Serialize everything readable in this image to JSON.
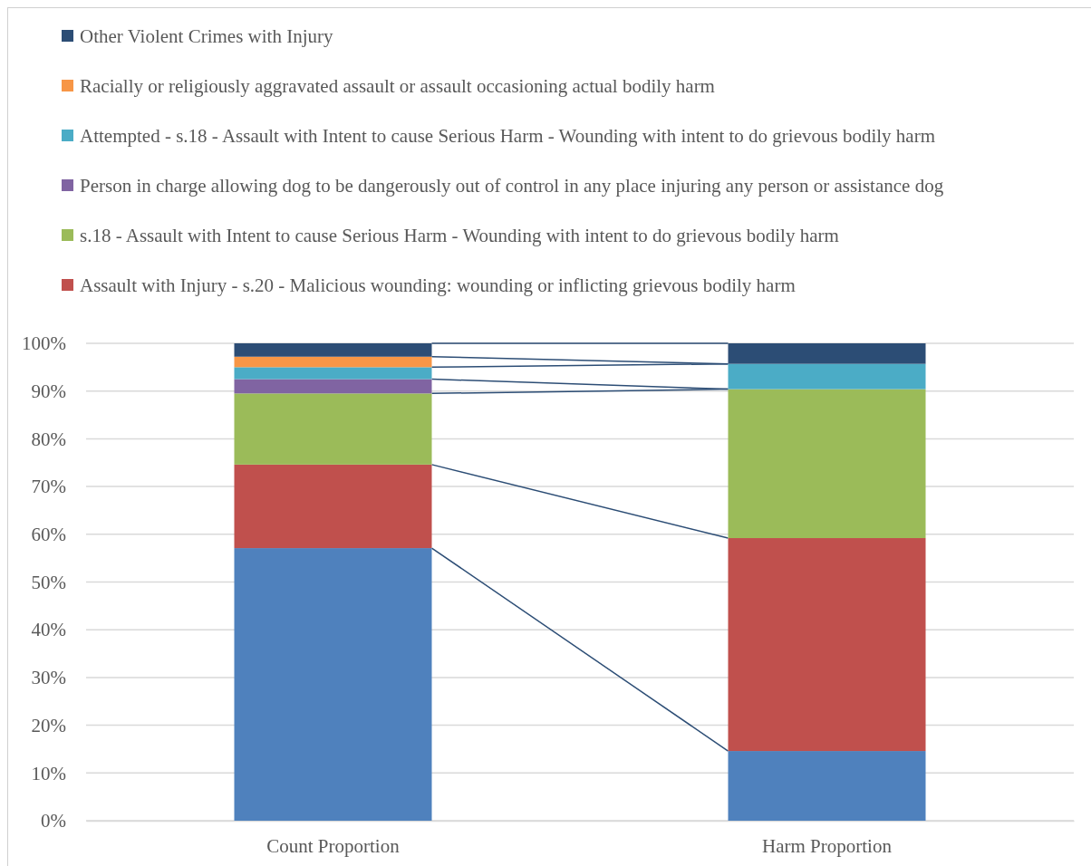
{
  "chart_data": {
    "type": "bar",
    "stacked": true,
    "categories": [
      "Count Proportion",
      "Harm Proportion"
    ],
    "series": [
      {
        "color": "#4f81bd",
        "values": [
          57.1,
          14.6
        ]
      },
      {
        "name": "Assault with Injury - s.20 - Malicious wounding: wounding or inflicting grievous bodily harm",
        "color": "#c0504d",
        "values": [
          17.5,
          44.6
        ]
      },
      {
        "name": "s.18 - Assault with Intent to cause Serious Harm - Wounding with intent to do grievous bodily harm",
        "color": "#9bbb59",
        "values": [
          14.9,
          31.2
        ]
      },
      {
        "name": "Person in charge allowing dog to be dangerously out of control in any place  injuring any person or assistance dog",
        "color": "#8064a2",
        "values": [
          3.0,
          0
        ]
      },
      {
        "name": "Attempted - s.18 - Assault with Intent to cause Serious Harm - Wounding with intent to do grievous bodily harm",
        "color": "#4bacc6",
        "values": [
          2.5,
          5.3
        ]
      },
      {
        "name": "Racially or religiously aggravated assault or assault occasioning actual bodily harm",
        "color": "#f79646",
        "values": [
          2.2,
          0
        ]
      },
      {
        "name": "Other Violent Crimes with Injury",
        "color": "#2c4d75",
        "values": [
          2.8,
          4.3
        ]
      }
    ],
    "ylim": [
      0,
      100
    ],
    "yticks": [
      {
        "value": 0,
        "label": "0%"
      },
      {
        "value": 10,
        "label": "10%"
      },
      {
        "value": 20,
        "label": "20%"
      },
      {
        "value": 30,
        "label": "30%"
      },
      {
        "value": 40,
        "label": "40%"
      },
      {
        "value": 50,
        "label": "50%"
      },
      {
        "value": 60,
        "label": "60%"
      },
      {
        "value": 70,
        "label": "70%"
      },
      {
        "value": 80,
        "label": "80%"
      },
      {
        "value": 90,
        "label": "90%"
      },
      {
        "value": 100,
        "label": "100%"
      }
    ],
    "grid": "y",
    "legend": "top"
  }
}
